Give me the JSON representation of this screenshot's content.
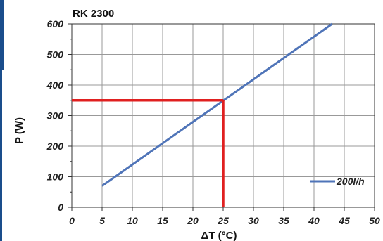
{
  "chart_data": {
    "type": "line",
    "title": "RK 2300",
    "xlabel": "ΔT (°C)",
    "ylabel": "P (W)",
    "xlim": [
      0,
      50
    ],
    "ylim": [
      0,
      600
    ],
    "xticks": [
      "0",
      "5",
      "10",
      "15",
      "20",
      "25",
      "30",
      "35",
      "40",
      "45",
      "50"
    ],
    "yticks": [
      "0",
      "100",
      "200",
      "300",
      "400",
      "500",
      "600"
    ],
    "grid": true,
    "legend_position": "bottom-right",
    "series": [
      {
        "name": "200l/h",
        "color": "#4f74b8",
        "x": [
          5,
          43
        ],
        "y": [
          70,
          600
        ]
      }
    ],
    "annotation": {
      "color": "#e02020",
      "x": 25,
      "y": 350
    }
  },
  "theme": {
    "accent_strip": "#1a4d8c",
    "grid": "#999999",
    "axis": "#333333"
  }
}
